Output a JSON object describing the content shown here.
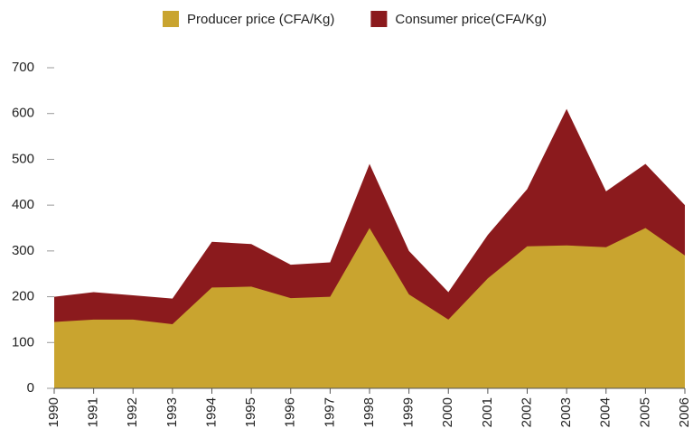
{
  "chart_data": {
    "type": "area",
    "categories": [
      "1990",
      "1991",
      "1992",
      "1993",
      "1994",
      "1995",
      "1996",
      "1997",
      "1998",
      "1999",
      "2000",
      "2001",
      "2002",
      "2003",
      "2004",
      "2005",
      "2006"
    ],
    "series": [
      {
        "name": "Consumer price(CFA/Kg)",
        "color": "#8b1a1d",
        "values": [
          200,
          210,
          203,
          196,
          320,
          315,
          270,
          275,
          490,
          300,
          210,
          335,
          435,
          610,
          430,
          490,
          400
        ]
      },
      {
        "name": "Producer price (CFA/Kg)",
        "color": "#c9a42f",
        "values": [
          145,
          150,
          150,
          140,
          220,
          222,
          197,
          200,
          350,
          205,
          150,
          240,
          310,
          312,
          308,
          350,
          290
        ]
      }
    ],
    "legend_order": [
      1,
      0
    ],
    "ylim": [
      0,
      700
    ],
    "yticks": [
      0,
      100,
      200,
      300,
      400,
      500,
      600,
      700
    ]
  }
}
